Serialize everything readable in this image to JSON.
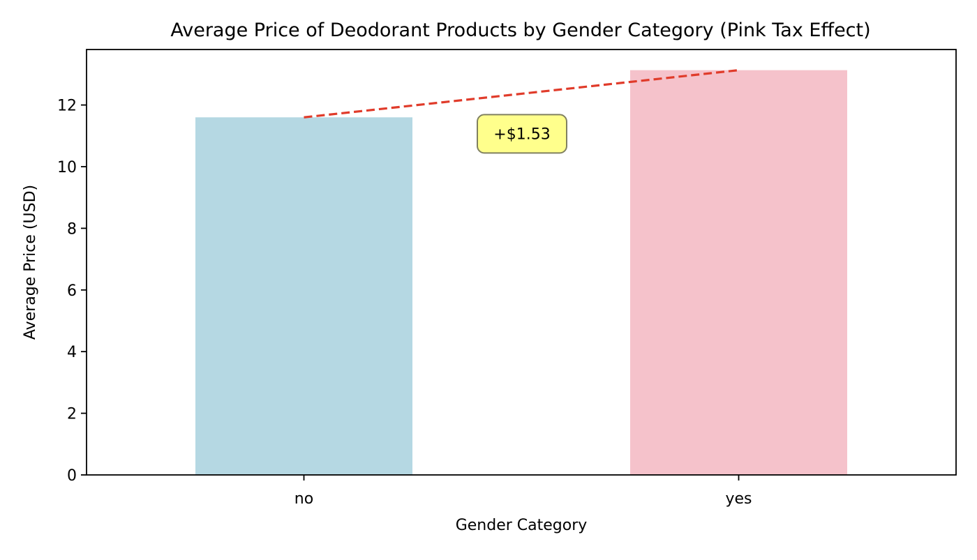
{
  "chart_data": {
    "type": "bar",
    "title": "Average Price of Deodorant Products by Gender Category (Pink Tax Effect)",
    "xlabel": "Gender Category",
    "ylabel": "Average Price (USD)",
    "categories": [
      "no",
      "yes"
    ],
    "values": [
      11.6,
      13.13
    ],
    "ylim": [
      0,
      13.8
    ],
    "yticks": [
      0,
      2,
      4,
      6,
      8,
      10,
      12
    ],
    "ytick_labels": [
      "0",
      "2",
      "4",
      "6",
      "8",
      "10",
      "12"
    ],
    "grid": false,
    "legend": null,
    "bar_colors": [
      "#b5d8e3",
      "#f5c2cb"
    ],
    "trend_line": {
      "from": "no",
      "to": "yes",
      "color": "#e03b2a",
      "style": "dashed"
    },
    "annotation": {
      "text": "+$1.53",
      "y": 11.1,
      "box_color": "#ffff8c",
      "border_color": "#808060"
    }
  }
}
